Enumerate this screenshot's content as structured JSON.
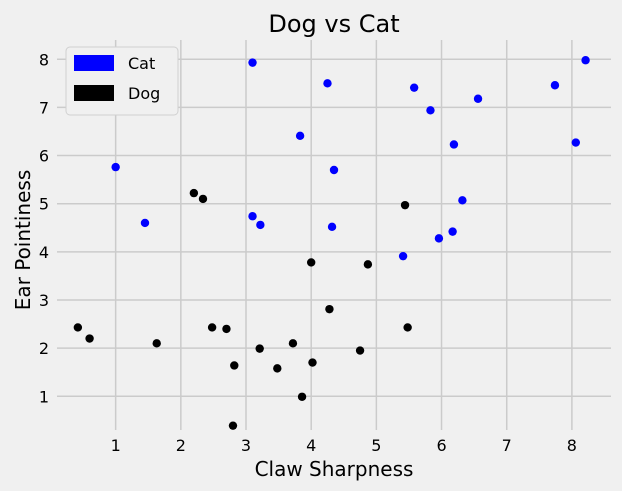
{
  "chart_data": {
    "type": "scatter",
    "title": "Dog vs Cat",
    "xlabel": "Claw Sharpness",
    "ylabel": "Ear Pointiness",
    "xlim": [
      0.1,
      8.6
    ],
    "ylim": [
      0.3,
      8.4
    ],
    "x_ticks": [
      "1",
      "2",
      "3",
      "4",
      "5",
      "6",
      "7",
      "8"
    ],
    "y_ticks": [
      "1",
      "2",
      "3",
      "4",
      "5",
      "6",
      "7",
      "8"
    ],
    "grid": true,
    "legend_position": "top-left",
    "series": [
      {
        "name": "Cat",
        "color": "#0000ff",
        "points": [
          [
            1.0,
            5.76
          ],
          [
            1.45,
            4.6
          ],
          [
            3.1,
            7.93
          ],
          [
            3.1,
            4.74
          ],
          [
            3.22,
            4.56
          ],
          [
            3.83,
            6.41
          ],
          [
            4.25,
            7.5
          ],
          [
            4.32,
            4.52
          ],
          [
            4.35,
            5.7
          ],
          [
            5.41,
            3.91
          ],
          [
            5.58,
            7.41
          ],
          [
            5.83,
            6.94
          ],
          [
            5.96,
            4.28
          ],
          [
            6.17,
            4.42
          ],
          [
            6.19,
            6.23
          ],
          [
            6.32,
            5.07
          ],
          [
            6.56,
            7.18
          ],
          [
            7.74,
            7.46
          ],
          [
            8.06,
            6.27
          ],
          [
            8.21,
            7.98
          ]
        ]
      },
      {
        "name": "Dog",
        "color": "#000000",
        "points": [
          [
            0.42,
            2.43
          ],
          [
            0.6,
            2.2
          ],
          [
            1.63,
            2.1
          ],
          [
            2.2,
            5.22
          ],
          [
            2.34,
            5.1
          ],
          [
            2.48,
            2.43
          ],
          [
            2.7,
            2.4
          ],
          [
            2.8,
            0.39
          ],
          [
            2.82,
            1.64
          ],
          [
            3.21,
            1.99
          ],
          [
            3.48,
            1.58
          ],
          [
            3.72,
            2.1
          ],
          [
            3.86,
            0.99
          ],
          [
            4.0,
            3.78
          ],
          [
            4.02,
            1.7
          ],
          [
            4.28,
            2.81
          ],
          [
            4.75,
            1.95
          ],
          [
            4.87,
            3.74
          ],
          [
            5.44,
            4.97
          ],
          [
            5.48,
            2.43
          ]
        ]
      }
    ]
  }
}
